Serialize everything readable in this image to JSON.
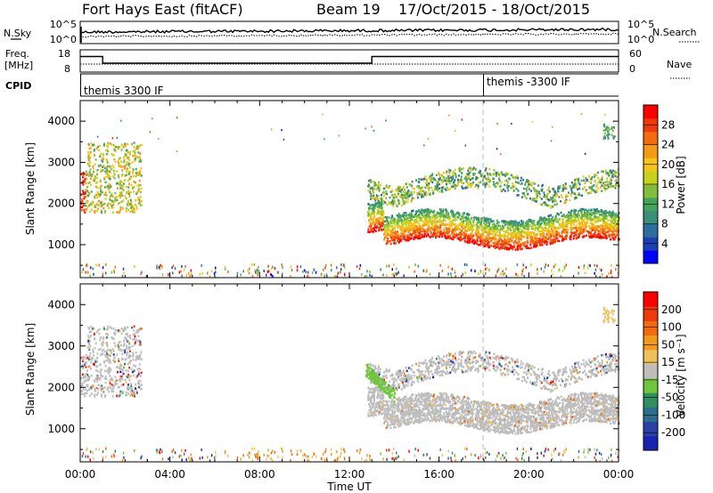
{
  "header": {
    "station": "Fort Hays East (fitACF)",
    "beam": "Beam 19",
    "date_range": "17/Oct/2015 - 18/Oct/2015"
  },
  "panels": {
    "nsky": {
      "left_label": "N.Sky",
      "right_label": "N.Search",
      "ticks_left": [
        "10^5",
        "10^0"
      ],
      "ticks_right": [
        "10^5",
        "10^0"
      ]
    },
    "freq": {
      "left_label": "Freq.",
      "left_unit": "[MHz]",
      "right_label": "Nave",
      "ticks_left": [
        "18",
        "8"
      ],
      "ticks_right": [
        "60",
        "0"
      ]
    },
    "cpid": {
      "label": "CPID",
      "segments": [
        "themis 3300 IF",
        "themis -3300 IF"
      ]
    }
  },
  "colorbars": {
    "power": {
      "label": "Power [dB]",
      "ticks": [
        "28",
        "24",
        "20",
        "16",
        "12",
        "8",
        "4"
      ],
      "colors": [
        "#0000ff",
        "#1d3fb5",
        "#2e6e9c",
        "#3a8f7a",
        "#44a55a",
        "#7fbd3a",
        "#c8d21c",
        "#f5c418",
        "#f59a16",
        "#f26b10",
        "#ef3a0a",
        "#ff0000"
      ]
    },
    "velocity": {
      "label": "Velocity [m s⁻¹]",
      "ticks": [
        "200",
        "100",
        "50",
        "15",
        "-15",
        "-50",
        "-100",
        "-200"
      ],
      "colors": [
        "#1a22b0",
        "#2b3fa6",
        "#2c6e8c",
        "#2f8f5e",
        "#6ec63c",
        "#bdbdbd",
        "#f0c05a",
        "#f09a1c",
        "#f06a10",
        "#ee3a08",
        "#ff0000"
      ]
    }
  },
  "chart_data": [
    {
      "type": "line",
      "title": "N.Sky / N.Search",
      "x": [
        "00:00",
        "04:00",
        "08:00",
        "12:00",
        "16:00",
        "20:00",
        "00:00"
      ],
      "series": [
        {
          "name": "N.Sky",
          "values": [
            1000,
            800,
            700,
            900,
            2000,
            2500,
            3000
          ]
        },
        {
          "name": "N.Search",
          "values": [
            200,
            150,
            150,
            200,
            400,
            500,
            600
          ]
        }
      ],
      "scale": "log"
    },
    {
      "type": "line",
      "title": "Freq. / Nave",
      "x_hours": [
        0,
        1,
        1,
        13,
        13,
        24
      ],
      "series": [
        {
          "name": "Freq. [MHz]",
          "values": [
            15,
            15,
            12,
            12,
            15,
            15
          ]
        },
        {
          "name": "Nave",
          "values": [
            20,
            20,
            20,
            20,
            20,
            20
          ]
        }
      ],
      "ylim": [
        8,
        18
      ]
    },
    {
      "type": "heatmap",
      "ylabel": "Slant Range [km]",
      "xlabel": "Time UT",
      "x_ticks": [
        "00:00",
        "04:00",
        "08:00",
        "12:00",
        "16:00",
        "20:00",
        "00:00"
      ],
      "y_ticks": [
        "1000",
        "2000",
        "3000",
        "4000"
      ],
      "ylim": [
        200,
        4500
      ],
      "colorbar": "Power [dB]",
      "clim": [
        0,
        30
      ],
      "features": [
        {
          "t": [
            0,
            2.7
          ],
          "range": [
            1800,
            3600
          ],
          "power": 14
        },
        {
          "t": [
            12.8,
            24
          ],
          "range": [
            1000,
            1900
          ],
          "power": 26
        },
        {
          "t": [
            12.8,
            24
          ],
          "range": [
            1900,
            2800
          ],
          "power": 12
        }
      ]
    },
    {
      "type": "heatmap",
      "ylabel": "Slant Range [km]",
      "xlabel": "Time UT",
      "x_ticks": [
        "00:00",
        "04:00",
        "08:00",
        "12:00",
        "16:00",
        "20:00",
        "00:00"
      ],
      "y_ticks": [
        "1000",
        "2000",
        "3000",
        "4000"
      ],
      "ylim": [
        200,
        4500
      ],
      "colorbar": "Velocity [m s⁻¹]",
      "clim": [
        -200,
        200
      ],
      "features": [
        {
          "t": [
            0,
            2.7
          ],
          "range": [
            1800,
            3600
          ],
          "velocity": 0
        },
        {
          "t": [
            12.8,
            14
          ],
          "range": [
            1500,
            2300
          ],
          "velocity": 40
        },
        {
          "t": [
            12.8,
            24
          ],
          "range": [
            1000,
            2900
          ],
          "velocity": 0
        }
      ]
    }
  ],
  "xaxis": {
    "ticks": [
      "00:00",
      "04:00",
      "08:00",
      "12:00",
      "16:00",
      "20:00",
      "00:00"
    ],
    "label": "Time UT"
  }
}
